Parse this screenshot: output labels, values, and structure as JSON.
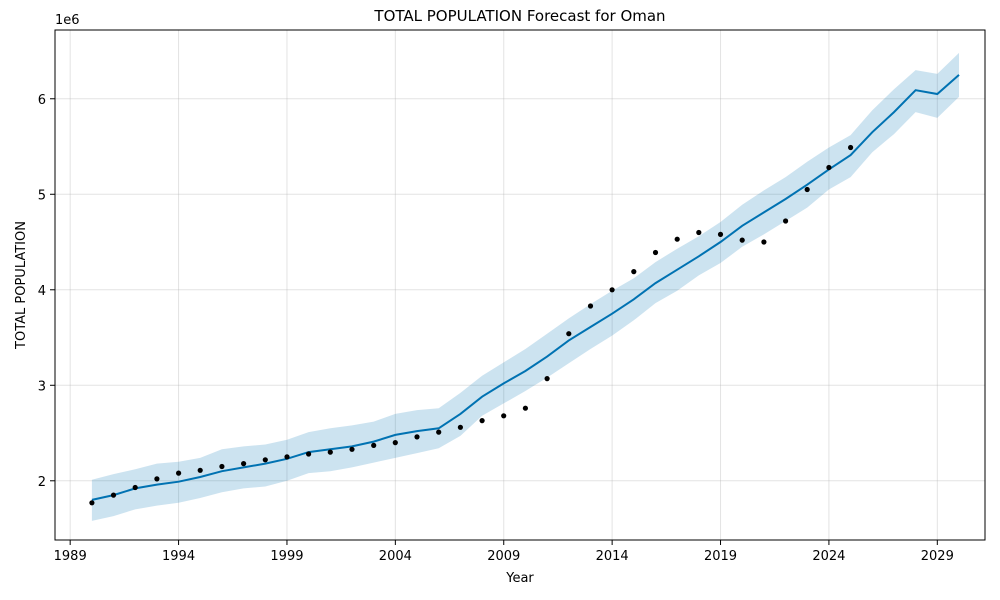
{
  "chart_data": {
    "type": "line",
    "title": "TOTAL POPULATION Forecast for Oman",
    "xlabel": "Year",
    "ylabel": "TOTAL POPULATION",
    "y_multiplier_label": "1e6",
    "xlim": [
      1988.3,
      2031.2
    ],
    "ylim": [
      1.38,
      6.72
    ],
    "x_ticks": [
      1989,
      1994,
      1999,
      2004,
      2009,
      2014,
      2019,
      2024,
      2029
    ],
    "y_ticks": [
      2,
      3,
      4,
      5,
      6
    ],
    "grid": true,
    "colors": {
      "forecast": "#0072B2",
      "band": "#0072B2",
      "observed": "#000000"
    },
    "observed": {
      "x": [
        1990,
        1991,
        1992,
        1993,
        1994,
        1995,
        1996,
        1997,
        1998,
        1999,
        2000,
        2001,
        2002,
        2003,
        2004,
        2005,
        2006,
        2007,
        2008,
        2009,
        2010,
        2011,
        2012,
        2013,
        2014,
        2015,
        2016,
        2017,
        2018,
        2019,
        2020,
        2021,
        2022,
        2023,
        2024,
        2025
      ],
      "y": [
        1.77,
        1.85,
        1.93,
        2.02,
        2.08,
        2.11,
        2.15,
        2.18,
        2.22,
        2.25,
        2.28,
        2.3,
        2.33,
        2.37,
        2.4,
        2.46,
        2.51,
        2.56,
        2.63,
        2.68,
        2.76,
        3.07,
        3.54,
        3.83,
        4.0,
        4.19,
        4.39,
        4.53,
        4.6,
        4.58,
        4.52,
        4.5,
        4.72,
        5.05,
        5.28,
        5.49
      ]
    },
    "forecast": {
      "x": [
        1990,
        1991,
        1992,
        1993,
        1994,
        1995,
        1996,
        1997,
        1998,
        1999,
        2000,
        2001,
        2002,
        2003,
        2004,
        2005,
        2006,
        2007,
        2008,
        2009,
        2010,
        2011,
        2012,
        2013,
        2014,
        2015,
        2016,
        2017,
        2018,
        2019,
        2020,
        2021,
        2022,
        2023,
        2024,
        2025,
        2026,
        2027,
        2028,
        2029,
        2030
      ],
      "yhat": [
        1.8,
        1.85,
        1.92,
        1.96,
        1.99,
        2.04,
        2.1,
        2.14,
        2.18,
        2.23,
        2.3,
        2.33,
        2.36,
        2.41,
        2.48,
        2.52,
        2.55,
        2.7,
        2.88,
        3.02,
        3.15,
        3.3,
        3.47,
        3.61,
        3.75,
        3.9,
        4.07,
        4.21,
        4.35,
        4.5,
        4.67,
        4.81,
        4.95,
        5.1,
        5.26,
        5.41,
        5.65,
        5.86,
        6.09,
        6.05,
        6.25
      ],
      "lower": [
        1.58,
        1.63,
        1.7,
        1.74,
        1.77,
        1.82,
        1.88,
        1.92,
        1.94,
        2.0,
        2.08,
        2.1,
        2.14,
        2.19,
        2.24,
        2.29,
        2.34,
        2.47,
        2.68,
        2.81,
        2.94,
        3.08,
        3.23,
        3.38,
        3.52,
        3.68,
        3.86,
        3.99,
        4.15,
        4.28,
        4.45,
        4.58,
        4.72,
        4.86,
        5.05,
        5.18,
        5.44,
        5.63,
        5.86,
        5.8,
        6.02
      ],
      "upper": [
        2.01,
        2.07,
        2.12,
        2.18,
        2.2,
        2.24,
        2.33,
        2.36,
        2.38,
        2.43,
        2.51,
        2.55,
        2.58,
        2.62,
        2.7,
        2.74,
        2.76,
        2.92,
        3.1,
        3.24,
        3.38,
        3.54,
        3.7,
        3.85,
        3.99,
        4.12,
        4.29,
        4.43,
        4.56,
        4.71,
        4.89,
        5.04,
        5.18,
        5.34,
        5.49,
        5.62,
        5.88,
        6.1,
        6.3,
        6.26,
        6.48
      ]
    }
  }
}
